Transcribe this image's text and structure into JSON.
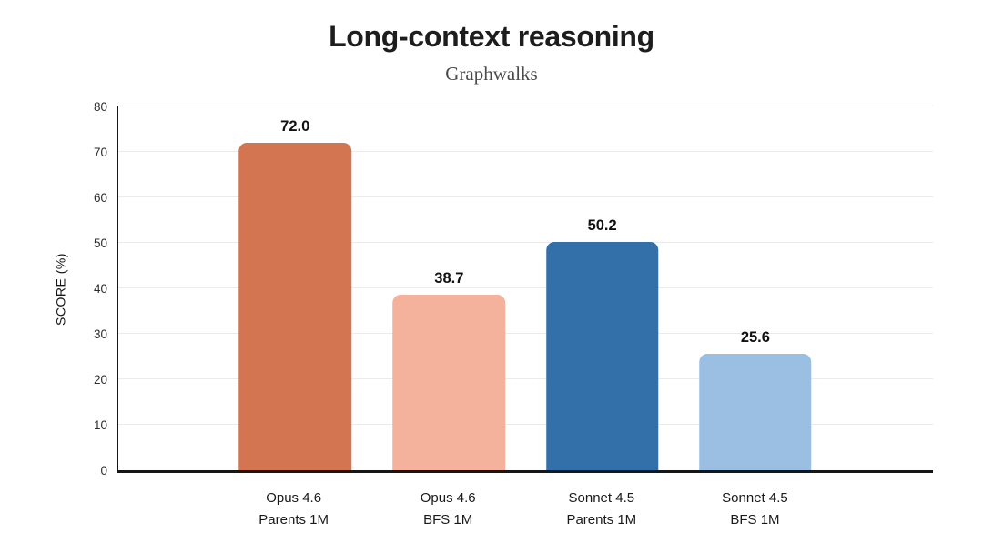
{
  "header": {
    "title": "Long-context reasoning",
    "subtitle": "Graphwalks"
  },
  "chart_data": {
    "type": "bar",
    "title": "Long-context reasoning",
    "subtitle": "Graphwalks",
    "categories": [
      [
        "Opus 4.6",
        "Parents 1M"
      ],
      [
        "Opus 4.6",
        "BFS 1M"
      ],
      [
        "Sonnet 4.5",
        "Parents 1M"
      ],
      [
        "Sonnet 4.5",
        "BFS 1M"
      ]
    ],
    "values": [
      72.0,
      38.7,
      50.2,
      25.6
    ],
    "value_labels": [
      "72.0",
      "38.7",
      "50.2",
      "25.6"
    ],
    "bar_colors": [
      "#D27550",
      "#F4B19B",
      "#336FA9",
      "#9ABFE3"
    ],
    "xlabel": "",
    "ylabel": "SCORE (%)",
    "ylim": [
      0,
      80
    ],
    "yticks": [
      0,
      10,
      20,
      30,
      40,
      50,
      60,
      70,
      80
    ],
    "grid": "horizontal",
    "legend": "none",
    "layout": {
      "bar_centers_pct": [
        21.7,
        40.6,
        59.4,
        78.2
      ],
      "bar_width_pct": 13.8
    }
  },
  "colors": {
    "background": "#ffffff",
    "axis": "#161616",
    "gridline": "#ebebeb",
    "title_text": "#1d1d1d",
    "subtitle_text": "#4a4a4a",
    "tick_text": "#2b2b2b",
    "value_text": "#111111"
  }
}
